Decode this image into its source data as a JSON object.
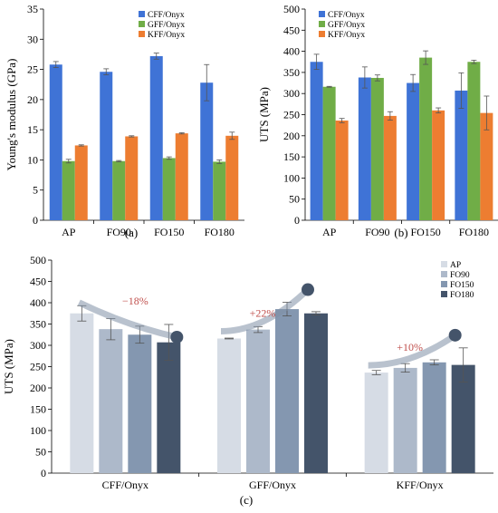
{
  "chart_data": [
    {
      "id": "a",
      "type": "bar",
      "panel_label": "(a)",
      "categories": [
        "AP",
        "FO90",
        "FO150",
        "FO180"
      ],
      "series": [
        {
          "name": "CFF/Onyx",
          "values": [
            25.8,
            24.6,
            27.2,
            22.8
          ],
          "errors": [
            0.5,
            0.5,
            0.5,
            3.0
          ]
        },
        {
          "name": "GFF/Onyx",
          "values": [
            9.8,
            9.8,
            10.3,
            9.7
          ],
          "errors": [
            0.3,
            0.1,
            0.2,
            0.3
          ]
        },
        {
          "name": "KFF/Onyx",
          "values": [
            12.4,
            13.9,
            14.4,
            14.0
          ],
          "errors": [
            0.1,
            0.1,
            0.1,
            0.6
          ]
        }
      ],
      "colors": [
        "#3F73D6",
        "#70AD47",
        "#ED7D31"
      ],
      "title": "",
      "xlabel": "",
      "ylabel": "Young's modulus (GPa)",
      "ylim": [
        0,
        35
      ],
      "yticks": [
        "0",
        "5",
        "10",
        "15",
        "20",
        "25",
        "30",
        "35"
      ],
      "grid": false,
      "legend": "top-right"
    },
    {
      "id": "b",
      "type": "bar",
      "panel_label": "(b)",
      "categories": [
        "AP",
        "FO90",
        "FO150",
        "FO180"
      ],
      "series": [
        {
          "name": "CFF/Onyx",
          "values": [
            375,
            338,
            325,
            307
          ],
          "errors": [
            18,
            25,
            20,
            42
          ]
        },
        {
          "name": "GFF/Onyx",
          "values": [
            316,
            337,
            385,
            375
          ],
          "errors": [
            1,
            7,
            16,
            4
          ]
        },
        {
          "name": "KFF/Onyx",
          "values": [
            236,
            247,
            260,
            254
          ],
          "errors": [
            5,
            10,
            6,
            40
          ]
        }
      ],
      "colors": [
        "#3F73D6",
        "#70AD47",
        "#ED7D31"
      ],
      "title": "",
      "xlabel": "",
      "ylabel": "UTS (MPa)",
      "ylim": [
        0,
        500
      ],
      "yticks": [
        "0",
        "50",
        "100",
        "150",
        "200",
        "250",
        "300",
        "350",
        "400",
        "450",
        "500"
      ],
      "grid": false,
      "legend": "top-right"
    },
    {
      "id": "c",
      "type": "bar",
      "panel_label": "(c)",
      "categories": [
        "CFF/Onyx",
        "GFF/Onyx",
        "KFF/Onyx"
      ],
      "series": [
        {
          "name": "AP",
          "values": [
            375,
            316,
            236
          ],
          "errors": [
            18,
            1,
            5
          ]
        },
        {
          "name": "FO90",
          "values": [
            338,
            337,
            247
          ],
          "errors": [
            25,
            7,
            10
          ]
        },
        {
          "name": "FO150",
          "values": [
            325,
            385,
            260
          ],
          "errors": [
            20,
            16,
            6
          ]
        },
        {
          "name": "FO180",
          "values": [
            307,
            375,
            254
          ],
          "errors": [
            42,
            4,
            40
          ]
        }
      ],
      "colors": [
        "#D6DCE5",
        "#ADB9CA",
        "#8497B0",
        "#44546A"
      ],
      "title": "",
      "xlabel": "",
      "ylabel": "UTS (MPa)",
      "ylim": [
        0,
        500
      ],
      "yticks": [
        "0",
        "50",
        "100",
        "150",
        "200",
        "250",
        "300",
        "350",
        "400",
        "450",
        "500"
      ],
      "grid": false,
      "legend": "top-right",
      "annotations": [
        {
          "text": "−18%",
          "group": "CFF/Onyx",
          "direction": "down",
          "color": "#C0504D"
        },
        {
          "text": "+22%",
          "group": "GFF/Onyx",
          "direction": "up",
          "color": "#C0504D"
        },
        {
          "text": "+10%",
          "group": "KFF/Onyx",
          "direction": "up",
          "color": "#C0504D"
        }
      ]
    }
  ]
}
